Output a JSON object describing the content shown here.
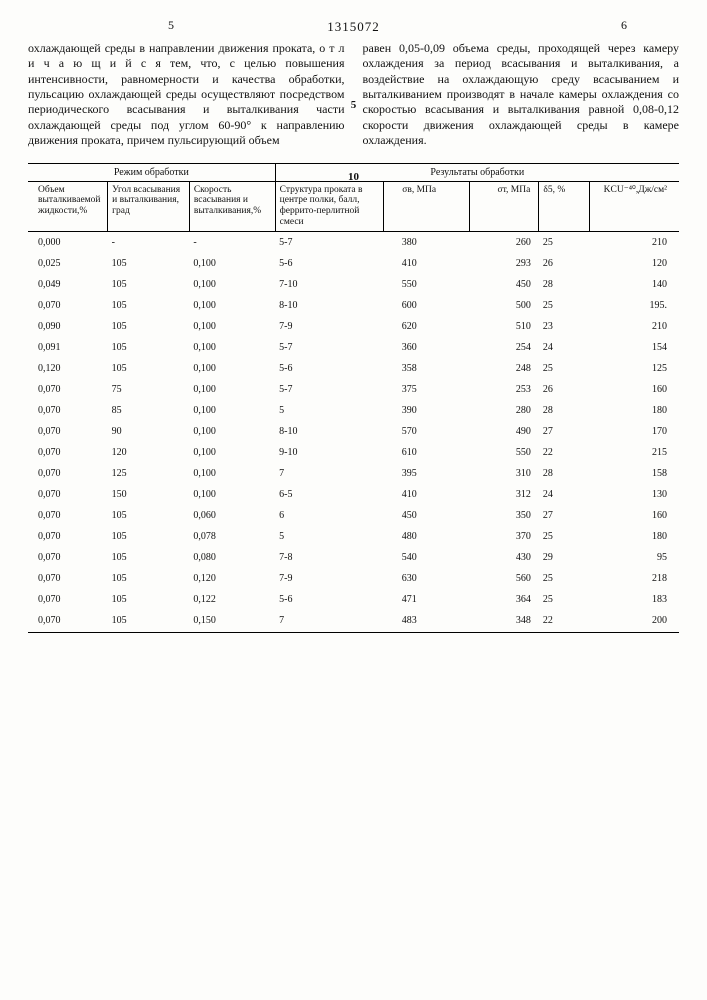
{
  "header": {
    "col_left_num": "5",
    "col_right_num": "6",
    "doc_number": "1315072"
  },
  "left_text": "охлаждающей среды в направлении движения проката, о т л и ч а ю щ и й с я тем, что, с целью повышения интенсивности, равномерности и качества обработки, пульсацию охлаждающей среды осуществляют посредством периодического всасывания и выталкивания части охлаждающей среды под углом 60-90° к направлению движения проката, причем пульсирующий объем",
  "right_text": "равен 0,05-0,09 объема среды, проходящей через камеру охлаждения за период всасывания и выталкивания, а воздействие на охлаждающую среду всасыванием и выталкиванием производят в начале камеры охлаждения со скоростью всасывания и выталкивания равной 0,08-0,12 скорости движения охлаждающей среды в камере охлаждения.",
  "line_marks": {
    "five": "5",
    "ten": "10"
  },
  "table": {
    "group_left": "Режим обработки",
    "group_right": "Результаты обработки",
    "headers": [
      "Объем выталкиваемой жидкости,%",
      "Угол всасывания и выталкивания, град",
      "Скорость всасывания и выталкивания,%",
      "Структура проката в центре полки, балл, феррито-перлитной смеси",
      "σв, МПа",
      "σт, МПа",
      "δ5, %",
      "KCU⁻⁴⁰,Дж/см²"
    ],
    "rows": [
      [
        "0,000",
        "-",
        "-",
        "5-7",
        "380",
        "260",
        "25",
        "210"
      ],
      [
        "0,025",
        "105",
        "0,100",
        "5-6",
        "410",
        "293",
        "26",
        "120"
      ],
      [
        "0,049",
        "105",
        "0,100",
        "7-10",
        "550",
        "450",
        "28",
        "140"
      ],
      [
        "0,070",
        "105",
        "0,100",
        "8-10",
        "600",
        "500",
        "25",
        "195."
      ],
      [
        "0,090",
        "105",
        "0,100",
        "7-9",
        "620",
        "510",
        "23",
        "210"
      ],
      [
        "0,091",
        "105",
        "0,100",
        "5-7",
        "360",
        "254",
        "24",
        "154"
      ],
      [
        "0,120",
        "105",
        "0,100",
        "5-6",
        "358",
        "248",
        "25",
        "125"
      ],
      [
        "0,070",
        "75",
        "0,100",
        "5-7",
        "375",
        "253",
        "26",
        "160"
      ],
      [
        "0,070",
        "85",
        "0,100",
        "5",
        "390",
        "280",
        "28",
        "180"
      ],
      [
        "0,070",
        "90",
        "0,100",
        "8-10",
        "570",
        "490",
        "27",
        "170"
      ],
      [
        "0,070",
        "120",
        "0,100",
        "9-10",
        "610",
        "550",
        "22",
        "215"
      ],
      [
        "0,070",
        "125",
        "0,100",
        "7",
        "395",
        "310",
        "28",
        "158"
      ],
      [
        "0,070",
        "150",
        "0,100",
        "6-5",
        "410",
        "312",
        "24",
        "130"
      ],
      [
        "0,070",
        "105",
        "0,060",
        "6",
        "450",
        "350",
        "27",
        "160"
      ],
      [
        "0,070",
        "105",
        "0,078",
        "5",
        "480",
        "370",
        "25",
        "180"
      ],
      [
        "0,070",
        "105",
        "0,080",
        "7-8",
        "540",
        "430",
        "29",
        "95"
      ],
      [
        "0,070",
        "105",
        "0,120",
        "7-9",
        "630",
        "560",
        "25",
        "218"
      ],
      [
        "0,070",
        "105",
        "0,122",
        "5-6",
        "471",
        "364",
        "25",
        "183"
      ],
      [
        "0,070",
        "105",
        "0,150",
        "7",
        "483",
        "348",
        "22",
        "200"
      ]
    ]
  }
}
